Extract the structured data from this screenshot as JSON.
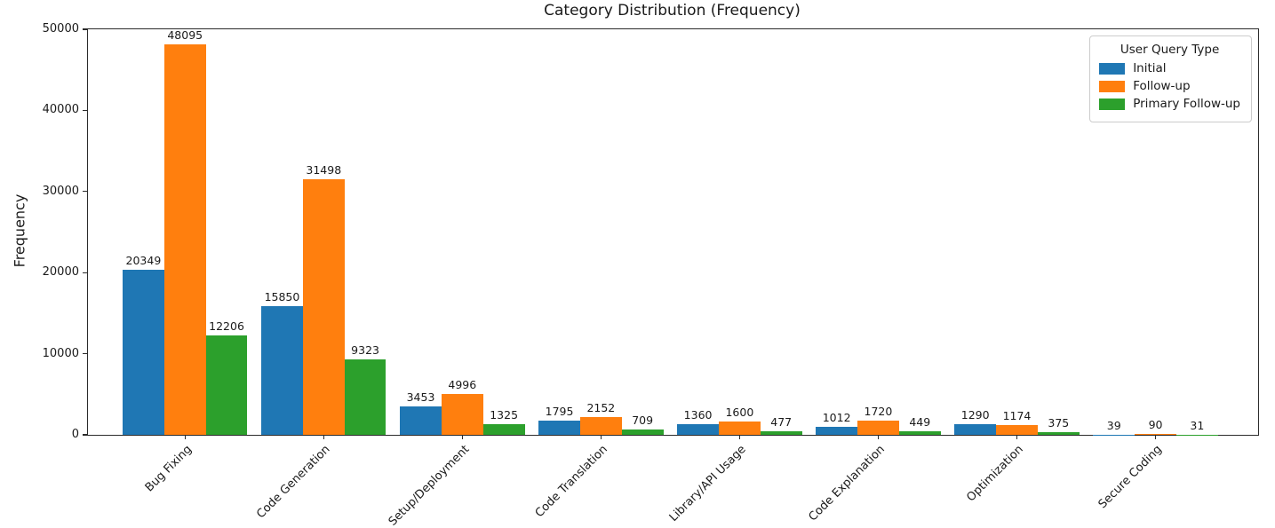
{
  "chart_data": {
    "type": "bar",
    "title": "Category Distribution (Frequency)",
    "xlabel": "",
    "ylabel": "Frequency",
    "categories": [
      "Bug Fixing",
      "Code Generation",
      "Setup/Deployment",
      "Code Translation",
      "Library/API Usage",
      "Code Explanation",
      "Optimization",
      "Secure Coding"
    ],
    "series": [
      {
        "name": "Initial",
        "color": "#1f77b4",
        "values": [
          20349,
          15850,
          3453,
          1795,
          1360,
          1012,
          1290,
          39
        ]
      },
      {
        "name": "Follow-up",
        "color": "#ff7f0e",
        "values": [
          48095,
          31498,
          4996,
          2152,
          1600,
          1720,
          1174,
          90
        ]
      },
      {
        "name": "Primary Follow-up",
        "color": "#2ca02c",
        "values": [
          12206,
          9323,
          1325,
          709,
          477,
          449,
          375,
          31
        ]
      }
    ],
    "ylim": [
      0,
      50000
    ],
    "yticks": [
      0,
      10000,
      20000,
      30000,
      40000,
      50000
    ],
    "grid": false,
    "bar_value_labels": true,
    "legend": {
      "title": "User Query Type",
      "position": "upper right"
    }
  }
}
